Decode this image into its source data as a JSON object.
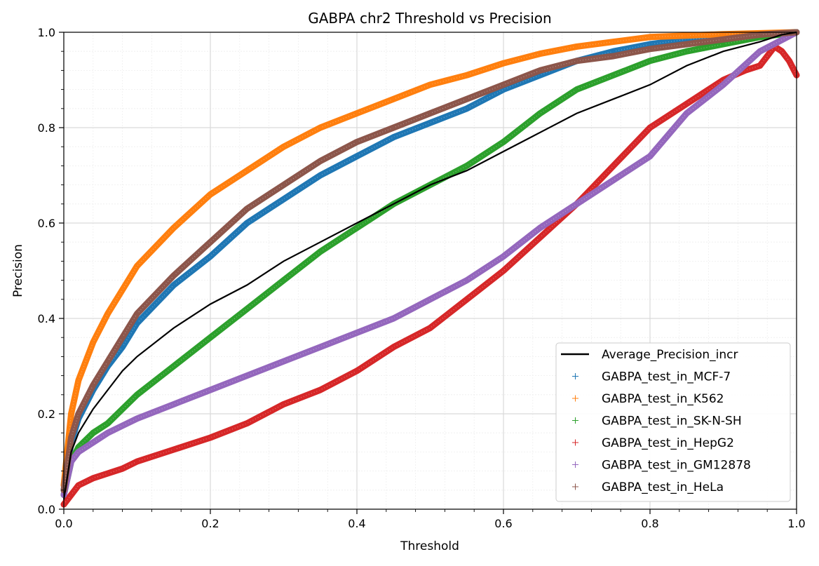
{
  "chart_data": {
    "type": "line",
    "title": "GABPA chr2 Threshold vs Precision",
    "xlabel": "Threshold",
    "ylabel": "Precision",
    "xlim": [
      0,
      1
    ],
    "ylim": [
      0,
      1
    ],
    "xticks": [
      "0.0",
      "0.2",
      "0.4",
      "0.6",
      "0.8",
      "1.0"
    ],
    "yticks": [
      "0.0",
      "0.2",
      "0.4",
      "0.6",
      "0.8",
      "1.0"
    ],
    "grid": true,
    "legend_position": "lower-right",
    "series": [
      {
        "name": "Average_Precision_incr",
        "color": "#000000",
        "style": "line",
        "x": [
          0.0,
          0.01,
          0.02,
          0.04,
          0.06,
          0.08,
          0.1,
          0.15,
          0.2,
          0.25,
          0.3,
          0.35,
          0.4,
          0.45,
          0.5,
          0.55,
          0.6,
          0.65,
          0.7,
          0.75,
          0.8,
          0.85,
          0.9,
          0.95,
          0.98,
          1.0
        ],
        "y": [
          0.02,
          0.12,
          0.16,
          0.21,
          0.25,
          0.29,
          0.32,
          0.38,
          0.43,
          0.47,
          0.52,
          0.56,
          0.6,
          0.64,
          0.68,
          0.71,
          0.75,
          0.79,
          0.83,
          0.86,
          0.89,
          0.93,
          0.96,
          0.98,
          0.995,
          1.0
        ]
      },
      {
        "name": "GABPA_test_in_MCF-7",
        "color": "#1f77b4",
        "style": "markers",
        "x": [
          0.0,
          0.01,
          0.02,
          0.04,
          0.06,
          0.08,
          0.1,
          0.15,
          0.2,
          0.25,
          0.3,
          0.35,
          0.4,
          0.45,
          0.5,
          0.55,
          0.6,
          0.65,
          0.7,
          0.75,
          0.8,
          0.85,
          0.9,
          0.95,
          1.0
        ],
        "y": [
          0.04,
          0.14,
          0.19,
          0.25,
          0.3,
          0.34,
          0.39,
          0.47,
          0.53,
          0.6,
          0.65,
          0.7,
          0.74,
          0.78,
          0.81,
          0.84,
          0.88,
          0.91,
          0.94,
          0.96,
          0.975,
          0.985,
          0.99,
          0.995,
          1.0
        ]
      },
      {
        "name": "GABPA_test_in_K562",
        "color": "#ff7f0e",
        "style": "markers",
        "x": [
          0.0,
          0.01,
          0.02,
          0.04,
          0.06,
          0.08,
          0.1,
          0.15,
          0.2,
          0.25,
          0.3,
          0.35,
          0.4,
          0.45,
          0.5,
          0.55,
          0.6,
          0.65,
          0.7,
          0.75,
          0.8,
          0.85,
          0.9,
          0.95,
          1.0
        ],
        "y": [
          0.05,
          0.2,
          0.27,
          0.35,
          0.41,
          0.46,
          0.51,
          0.59,
          0.66,
          0.71,
          0.76,
          0.8,
          0.83,
          0.86,
          0.89,
          0.91,
          0.935,
          0.955,
          0.97,
          0.98,
          0.99,
          0.993,
          0.996,
          0.998,
          1.0
        ]
      },
      {
        "name": "GABPA_test_in_SK-N-SH",
        "color": "#2ca02c",
        "style": "markers",
        "x": [
          0.0,
          0.01,
          0.02,
          0.04,
          0.06,
          0.08,
          0.1,
          0.15,
          0.2,
          0.25,
          0.3,
          0.35,
          0.4,
          0.45,
          0.5,
          0.55,
          0.6,
          0.65,
          0.7,
          0.75,
          0.8,
          0.85,
          0.9,
          0.95,
          1.0
        ],
        "y": [
          0.03,
          0.1,
          0.13,
          0.16,
          0.18,
          0.21,
          0.24,
          0.3,
          0.36,
          0.42,
          0.48,
          0.54,
          0.59,
          0.64,
          0.68,
          0.72,
          0.77,
          0.83,
          0.88,
          0.91,
          0.94,
          0.96,
          0.975,
          0.99,
          1.0
        ]
      },
      {
        "name": "GABPA_test_in_HepG2",
        "color": "#d62728",
        "style": "markers",
        "x": [
          0.0,
          0.01,
          0.02,
          0.04,
          0.06,
          0.08,
          0.1,
          0.15,
          0.2,
          0.25,
          0.3,
          0.35,
          0.4,
          0.45,
          0.5,
          0.55,
          0.6,
          0.65,
          0.7,
          0.75,
          0.8,
          0.85,
          0.9,
          0.93,
          0.95,
          0.97,
          0.98,
          0.99,
          1.0
        ],
        "y": [
          0.01,
          0.03,
          0.05,
          0.065,
          0.075,
          0.085,
          0.1,
          0.125,
          0.15,
          0.18,
          0.22,
          0.25,
          0.29,
          0.34,
          0.38,
          0.44,
          0.5,
          0.57,
          0.64,
          0.72,
          0.8,
          0.85,
          0.9,
          0.92,
          0.93,
          0.97,
          0.96,
          0.94,
          0.91
        ]
      },
      {
        "name": "GABPA_test_in_GM12878",
        "color": "#9467bd",
        "style": "markers",
        "x": [
          0.0,
          0.01,
          0.02,
          0.04,
          0.06,
          0.08,
          0.1,
          0.15,
          0.2,
          0.25,
          0.3,
          0.35,
          0.4,
          0.45,
          0.5,
          0.55,
          0.6,
          0.65,
          0.7,
          0.75,
          0.8,
          0.85,
          0.9,
          0.95,
          1.0
        ],
        "y": [
          0.03,
          0.1,
          0.12,
          0.14,
          0.16,
          0.175,
          0.19,
          0.22,
          0.25,
          0.28,
          0.31,
          0.34,
          0.37,
          0.4,
          0.44,
          0.48,
          0.53,
          0.59,
          0.64,
          0.69,
          0.74,
          0.83,
          0.89,
          0.96,
          1.0
        ]
      },
      {
        "name": "GABPA_test_in_HeLa",
        "color": "#8c564b",
        "style": "markers",
        "x": [
          0.0,
          0.01,
          0.02,
          0.04,
          0.06,
          0.08,
          0.1,
          0.15,
          0.2,
          0.25,
          0.3,
          0.35,
          0.4,
          0.45,
          0.5,
          0.55,
          0.6,
          0.65,
          0.7,
          0.75,
          0.8,
          0.85,
          0.9,
          0.95,
          1.0
        ],
        "y": [
          0.04,
          0.15,
          0.2,
          0.26,
          0.31,
          0.36,
          0.41,
          0.49,
          0.56,
          0.63,
          0.68,
          0.73,
          0.77,
          0.8,
          0.83,
          0.86,
          0.89,
          0.92,
          0.94,
          0.95,
          0.965,
          0.975,
          0.985,
          0.995,
          1.0
        ]
      }
    ]
  }
}
